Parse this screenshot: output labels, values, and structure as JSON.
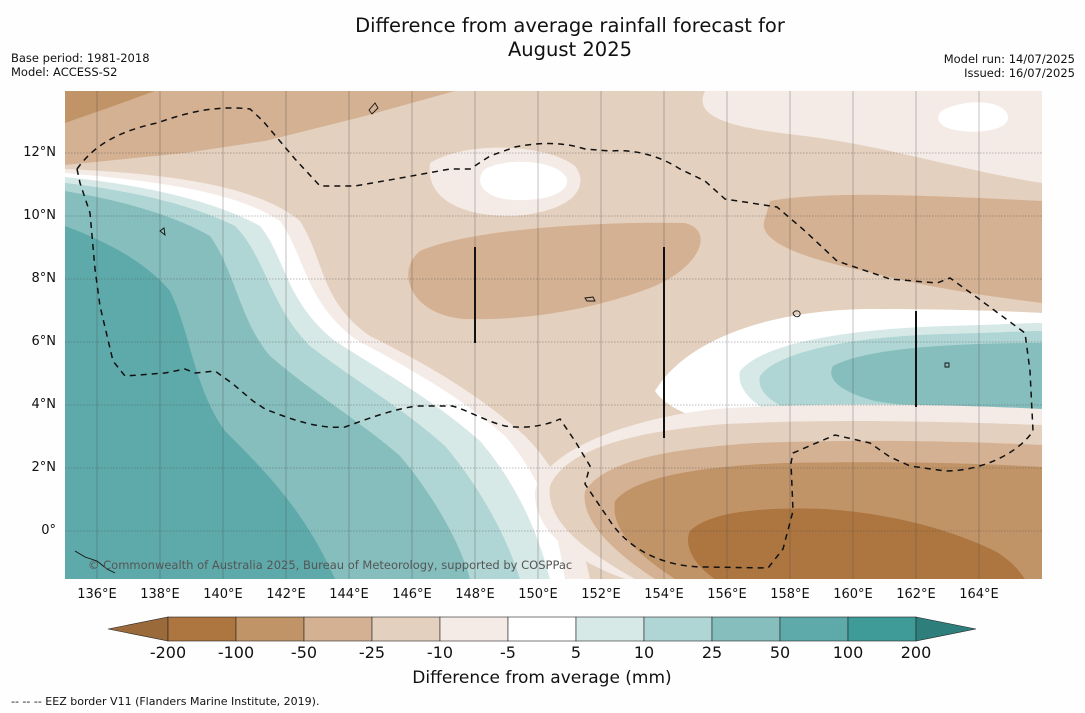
{
  "title_line1": "Difference from average rainfall forecast for",
  "title_line2": "August 2025",
  "meta_left": [
    "Base period: 1981-2018",
    "Model: ACCESS-S2"
  ],
  "meta_right": [
    "Model run: 14/07/2025",
    "Issued: 16/07/2025"
  ],
  "copyright": "© Commonwealth of Australia 2025, Bureau of Meteorology, supported by COSPPac",
  "x_ticks": [
    "136°E",
    "138°E",
    "140°E",
    "142°E",
    "144°E",
    "146°E",
    "148°E",
    "150°E",
    "152°E",
    "154°E",
    "156°E",
    "158°E",
    "160°E",
    "162°E",
    "164°E"
  ],
  "y_ticks": [
    "12°N",
    "10°N",
    "8°N",
    "6°N",
    "4°N",
    "2°N",
    "0°"
  ],
  "colorbar": {
    "ticks": [
      "-200",
      "-100",
      "-50",
      "-25",
      "-10",
      "-5",
      "5",
      "10",
      "25",
      "50",
      "100",
      "200"
    ],
    "label": "Difference from average (mm)",
    "colors": {
      "extend_low": "#9a6a3a",
      "lt_-100": "#ad7640",
      "-100_-50": "#c19468",
      "-50_-25": "#d4b192",
      "-25_-10": "#e4d0be",
      "-10_-5": "#f4ebe6",
      "-5_5": "#ffffff",
      "5_10": "#d6e9e7",
      "10_25": "#afd6d4",
      "25_50": "#85bebd",
      "50_100": "#5eaaaa",
      "100_200": "#3f9b98",
      "extend_high": "#2e7f7c"
    }
  },
  "legend_note": "--  --  -- EEZ border V11 (Flanders Marine Institute, 2019)."
}
